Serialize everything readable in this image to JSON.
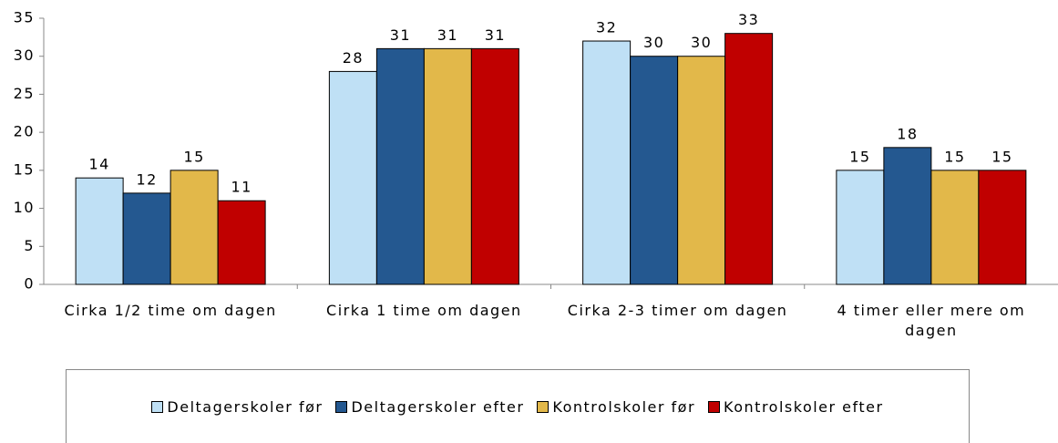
{
  "chart_data": {
    "type": "bar",
    "categories": [
      "Cirka 1/2 time om dagen",
      "Cirka 1 time om dagen",
      "Cirka 2-3 timer om dagen",
      "4 timer eller mere om dagen"
    ],
    "series": [
      {
        "name": "Deltagerskoler før",
        "color": "#bfe0f5",
        "values": [
          14,
          28,
          32,
          15
        ]
      },
      {
        "name": "Deltagerskoler efter",
        "color": "#245890",
        "values": [
          12,
          31,
          30,
          18
        ]
      },
      {
        "name": "Kontrolskoler før",
        "color": "#e2b84a",
        "values": [
          15,
          31,
          30,
          15
        ]
      },
      {
        "name": "Kontrolskoler efter",
        "color": "#c00000",
        "values": [
          11,
          31,
          33,
          15
        ]
      }
    ],
    "ylim": [
      0,
      35
    ],
    "yticks": [
      0,
      5,
      10,
      15,
      20,
      25,
      30,
      35
    ],
    "grid": false,
    "legend": "bottom"
  }
}
